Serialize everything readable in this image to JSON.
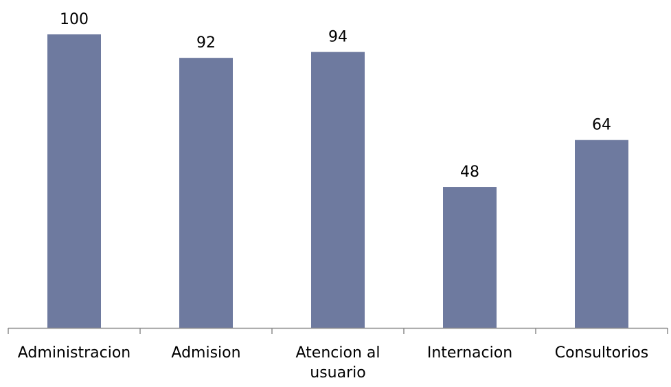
{
  "chart_data": {
    "type": "bar",
    "categories": [
      "Administracion",
      "Admision",
      "Atencion al usuario",
      "Internacion",
      "Consultorios"
    ],
    "category_lines": [
      [
        "Administracion"
      ],
      [
        "Admision"
      ],
      [
        "Atencion al",
        "usuario"
      ],
      [
        "Internacion"
      ],
      [
        "Consultorios"
      ]
    ],
    "values": [
      100,
      92,
      94,
      48,
      64
    ],
    "title": "",
    "xlabel": "",
    "ylabel": "",
    "ylim": [
      0,
      100
    ],
    "grid": false,
    "legend": "none",
    "bar_color": "#6e7a9f",
    "axis_color": "#8c8c8c"
  }
}
